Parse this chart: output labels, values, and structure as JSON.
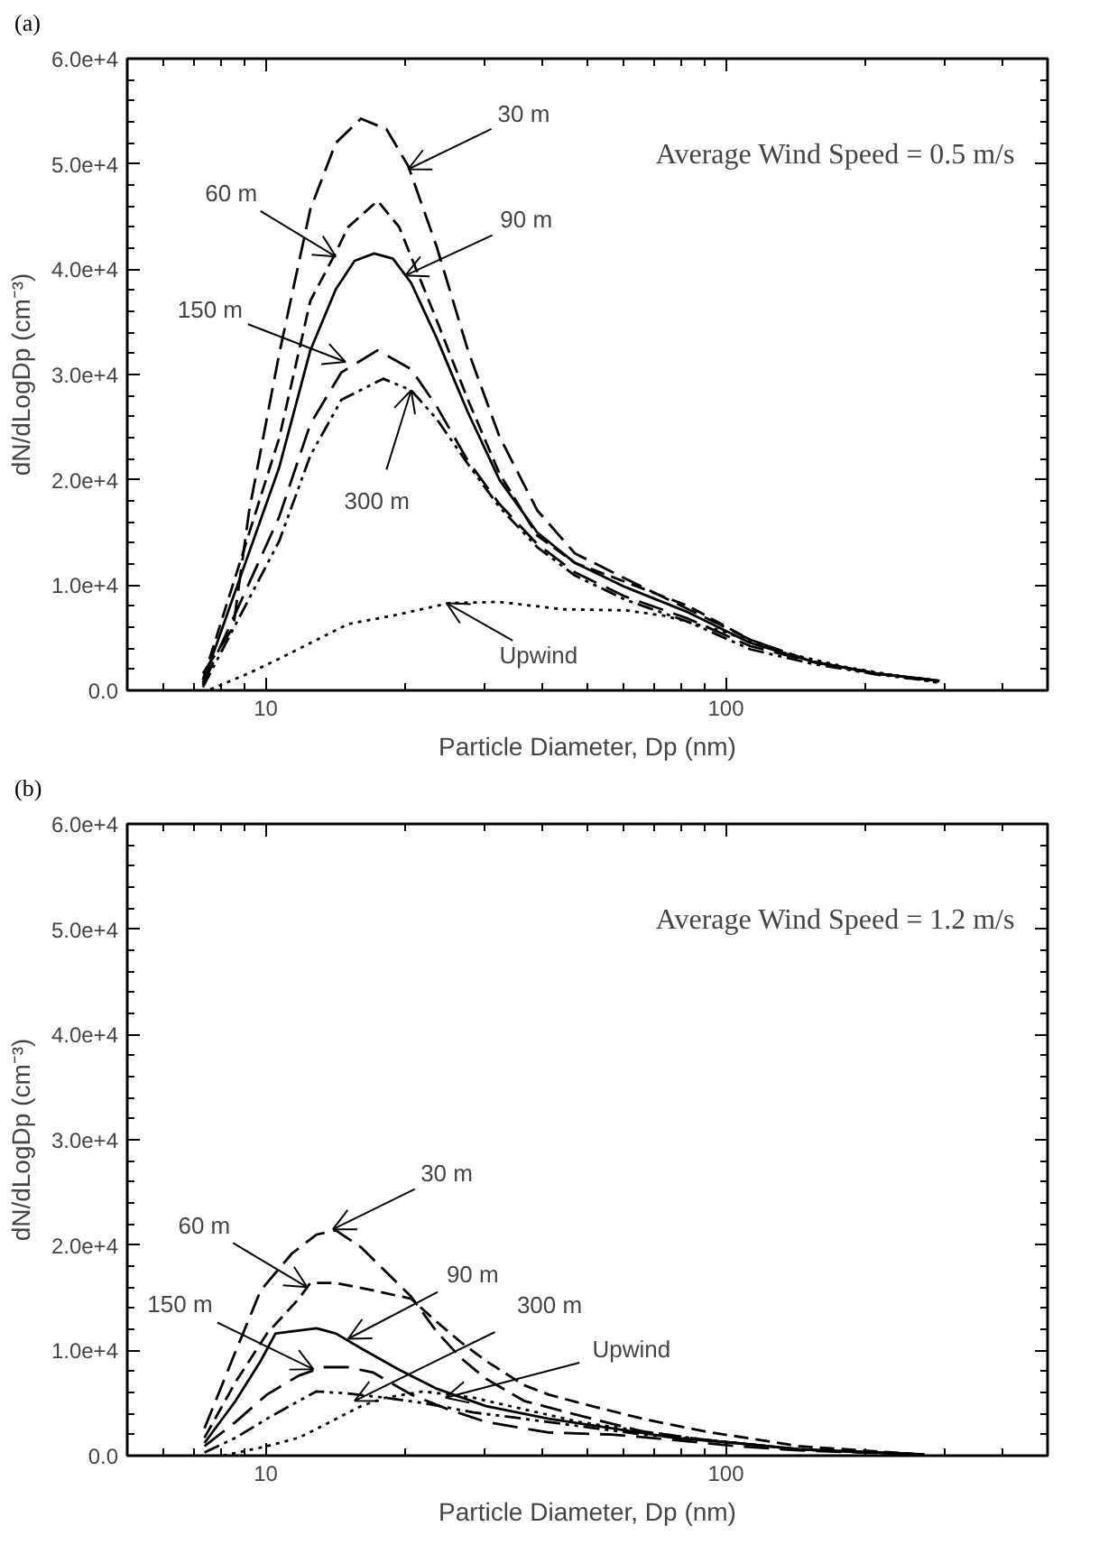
{
  "chart_data": [
    {
      "type": "line",
      "title": "(a)",
      "xlabel": "Particle Diameter, Dp (nm)",
      "ylabel": "dN/dLogDp (cm⁻³)",
      "log": "x",
      "grid": false,
      "xlim": [
        5,
        500
      ],
      "xticks": [
        10,
        100
      ],
      "ylim": [
        0,
        60000
      ],
      "yticks": [
        {
          "value": 0,
          "label": "0.0"
        },
        {
          "value": 10000,
          "label": "1.0e+4"
        },
        {
          "value": 20000,
          "label": "2.0e+4"
        },
        {
          "value": 30000,
          "label": "3.0e+4"
        },
        {
          "value": 40000,
          "label": "4.0e+4"
        },
        {
          "value": 50000,
          "label": "5.0e+4"
        },
        {
          "value": 60000,
          "label": "6.0e+4"
        }
      ],
      "series": [
        {
          "color": "#000000",
          "line_style": "dashed",
          "x": [
            7.3,
            8.5,
            9.2,
            10.7,
            12.5,
            14.2,
            16.1,
            18.3,
            20.4,
            23.5,
            27.5,
            32.2,
            38.9,
            47,
            60.5,
            82.9,
            113,
            155,
            213,
            291
          ],
          "values": [
            1600,
            6000,
            17000,
            32000,
            45700,
            52000,
            54300,
            53300,
            49800,
            42200,
            32300,
            24100,
            17100,
            13000,
            10600,
            7700,
            4800,
            2700,
            1600,
            900
          ]
        },
        {
          "color": "#000000",
          "line_style": "dashed",
          "x": [
            7.3,
            10.7,
            12.5,
            14.2,
            15.1,
            17.5,
            19.5,
            23.5,
            27.5,
            32.2,
            38.9,
            47,
            60.5,
            82.9,
            113,
            155,
            213,
            291
          ],
          "values": [
            1000,
            24000,
            37000,
            41600,
            44000,
            46500,
            44000,
            35200,
            27600,
            20600,
            14700,
            12100,
            10300,
            8000,
            4800,
            2700,
            1600,
            900
          ]
        },
        {
          "color": "#000000",
          "line_style": "solid",
          "x": [
            7.3,
            10.7,
            12.5,
            14.2,
            15.6,
            17.2,
            18.9,
            20.7,
            23.5,
            27.5,
            32.2,
            38.9,
            47,
            60.5,
            82.9,
            113,
            155,
            213,
            291
          ],
          "values": [
            700,
            21200,
            32300,
            38100,
            40800,
            41500,
            41000,
            38700,
            33500,
            26400,
            20000,
            15000,
            12100,
            9800,
            7400,
            4500,
            2700,
            1600,
            900
          ]
        },
        {
          "color": "#000000",
          "line_style": "dashed",
          "x": [
            7.3,
            10.7,
            12.5,
            14.6,
            17.5,
            20.7,
            23.5,
            27.5,
            32.2,
            38.9,
            47,
            60.5,
            82.9,
            113,
            155,
            213,
            291
          ],
          "values": [
            500,
            16500,
            25300,
            30200,
            32300,
            30500,
            27000,
            21800,
            17700,
            13900,
            11200,
            8900,
            6800,
            4200,
            2700,
            1600,
            900
          ]
        },
        {
          "color": "#000000",
          "line_style": "dashdot",
          "x": [
            7.3,
            10.7,
            12.5,
            14.6,
            18.0,
            20.7,
            23.5,
            27.5,
            32.2,
            38.9,
            47,
            60.5,
            82.9,
            113,
            155,
            213,
            291
          ],
          "values": [
            300,
            14200,
            22300,
            27600,
            29600,
            28500,
            25800,
            21500,
            17400,
            13600,
            10900,
            8600,
            6500,
            3900,
            2500,
            1500,
            800
          ]
        },
        {
          "color": "#000000",
          "line_style": "dotted",
          "x": [
            7.58,
            9.16,
            10.7,
            12.5,
            15.1,
            18.9,
            25.1,
            32.2,
            44.2,
            60.5,
            73.2,
            97,
            133,
            183,
            291
          ],
          "values": [
            100,
            1600,
            3000,
            4500,
            6300,
            7100,
            8300,
            8400,
            7700,
            7600,
            7100,
            5700,
            3600,
            2200,
            700
          ]
        }
      ],
      "annotations": [
        "Average Wind Speed = 0.5 m/s",
        {
          "text": "30 m",
          "x": 20.4,
          "y": 49500
        },
        {
          "text": "60 m",
          "x": 14.2,
          "y": 41200
        },
        {
          "text": "90 m",
          "x": 20.1,
          "y": 39400
        },
        {
          "text": "150 m",
          "x": 14.9,
          "y": 31200
        },
        {
          "text": "300 m",
          "x": 20.7,
          "y": 28500
        },
        {
          "text": "Upwind",
          "x": 24.7,
          "y": 8300
        }
      ]
    },
    {
      "type": "line",
      "title": "(b)",
      "xlabel": "Particle Diameter, Dp (nm)",
      "ylabel": "dN/dLogDp (cm⁻³)",
      "log": "x",
      "grid": false,
      "xlim": [
        5,
        500
      ],
      "xticks": [
        10,
        100
      ],
      "ylim": [
        0,
        60000
      ],
      "yticks": [
        {
          "value": 0,
          "label": "0.0"
        },
        {
          "value": 10000,
          "label": "1.0e+4"
        },
        {
          "value": 20000,
          "label": "2.0e+4"
        },
        {
          "value": 30000,
          "label": "3.0e+4"
        },
        {
          "value": 40000,
          "label": "4.0e+4"
        },
        {
          "value": 50000,
          "label": "5.0e+4"
        },
        {
          "value": 60000,
          "label": "6.0e+4"
        }
      ],
      "series": [
        {
          "color": "#000000",
          "line_style": "dashed",
          "x": [
            7.36,
            8.6,
            9.75,
            11.4,
            12.9,
            14.2,
            16.1,
            18.2,
            20.7,
            23.4,
            26.5,
            30.1,
            36.4,
            48.1,
            65.9,
            90,
            144,
            270
          ],
          "values": [
            2600,
            9900,
            15700,
            19200,
            21000,
            21400,
            19800,
            17500,
            15100,
            11900,
            9300,
            7300,
            5200,
            3800,
            2300,
            1500,
            600,
            100
          ]
        },
        {
          "color": "#000000",
          "line_style": "dashed",
          "x": [
            7.36,
            8.6,
            10.06,
            11.8,
            12.5,
            14.2,
            17.1,
            20.7,
            23.4,
            26.5,
            30.1,
            36.4,
            41.2,
            48.1,
            65.9,
            90,
            144,
            270
          ],
          "values": [
            1700,
            7000,
            11600,
            14900,
            16400,
            16400,
            15700,
            14900,
            12800,
            10800,
            9000,
            6700,
            5800,
            5000,
            3500,
            2300,
            900,
            100
          ]
        },
        {
          "color": "#000000",
          "line_style": "solid",
          "x": [
            7.36,
            8.6,
            9.75,
            10.5,
            12.9,
            14.2,
            16.1,
            19.4,
            23.4,
            30.1,
            41.2,
            56.4,
            77,
            105,
            144,
            270
          ],
          "values": [
            1200,
            5200,
            9000,
            11600,
            12100,
            11600,
            10200,
            8200,
            6400,
            4700,
            3500,
            2600,
            1700,
            1200,
            600,
            100
          ]
        },
        {
          "color": "#000000",
          "line_style": "dashed",
          "x": [
            7.36,
            8.6,
            10.06,
            11.8,
            13.3,
            15.1,
            17.1,
            20.7,
            24.9,
            30.1,
            41.2,
            56.4,
            77,
            105,
            144,
            270
          ],
          "values": [
            900,
            3200,
            5800,
            7600,
            8400,
            8400,
            7900,
            5800,
            4400,
            3200,
            2200,
            2000,
            1500,
            900,
            500,
            100
          ]
        },
        {
          "color": "#000000",
          "line_style": "dashdot",
          "x": [
            7.36,
            8.6,
            10.06,
            11.8,
            12.9,
            15.1,
            18.2,
            22.0,
            28.3,
            36.4,
            48.1,
            65.9,
            90,
            144,
            270
          ],
          "values": [
            300,
            1700,
            3500,
            5200,
            6100,
            5900,
            5500,
            5000,
            4100,
            3500,
            2800,
            2000,
            1500,
            600,
            100
          ]
        },
        {
          "color": "#000000",
          "line_style": "dotted",
          "x": [
            8.08,
            10.06,
            11.8,
            13.8,
            16.1,
            18.2,
            22.0,
            28.3,
            36.4,
            48.1,
            65.9,
            90,
            144,
            270
          ],
          "values": [
            0,
            900,
            1700,
            3200,
            4700,
            5500,
            6100,
            5500,
            4400,
            3200,
            2300,
            1500,
            600,
            100
          ]
        }
      ],
      "annotations": [
        "Average Wind Speed = 1.2 m/s",
        {
          "text": "30 m",
          "x": 14.0,
          "y": 21500
        },
        {
          "text": "60 m",
          "x": 12.3,
          "y": 16000
        },
        {
          "text": "90 m",
          "x": 15.1,
          "y": 11100
        },
        {
          "text": "150 m",
          "x": 12.7,
          "y": 8200
        },
        {
          "text": "300 m",
          "x": 15.6,
          "y": 5200
        },
        {
          "text": "Upwind",
          "x": 24.6,
          "y": 5500
        }
      ]
    }
  ]
}
